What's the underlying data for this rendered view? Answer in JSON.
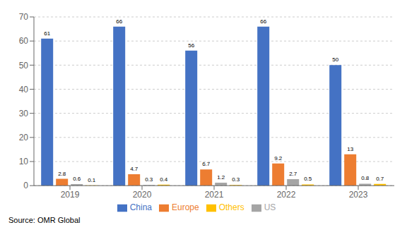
{
  "chart_data": {
    "type": "bar",
    "categories": [
      "2019",
      "2020",
      "2021",
      "2022",
      "2023"
    ],
    "series": [
      {
        "name": "China",
        "color": "#4472C4",
        "values": [
          61,
          66,
          56,
          66,
          50
        ]
      },
      {
        "name": "Europe",
        "color": "#ED7D31",
        "values": [
          2.8,
          4.7,
          6.7,
          9.2,
          13
        ]
      },
      {
        "name": "US",
        "color": "#A5A5A5",
        "values": [
          0.6,
          0.3,
          1.2,
          2.7,
          0.8
        ]
      },
      {
        "name": "Others",
        "color": "#FFC000",
        "values": [
          0.1,
          0.4,
          0.3,
          0.5,
          0.7
        ]
      }
    ],
    "ylim": [
      0,
      70
    ],
    "yticks": [
      0,
      10,
      20,
      30,
      40,
      50,
      60,
      70
    ],
    "grid": true,
    "data_labels": true,
    "legend": "bottom",
    "annotations": [
      "Source: OMR Global"
    ]
  }
}
